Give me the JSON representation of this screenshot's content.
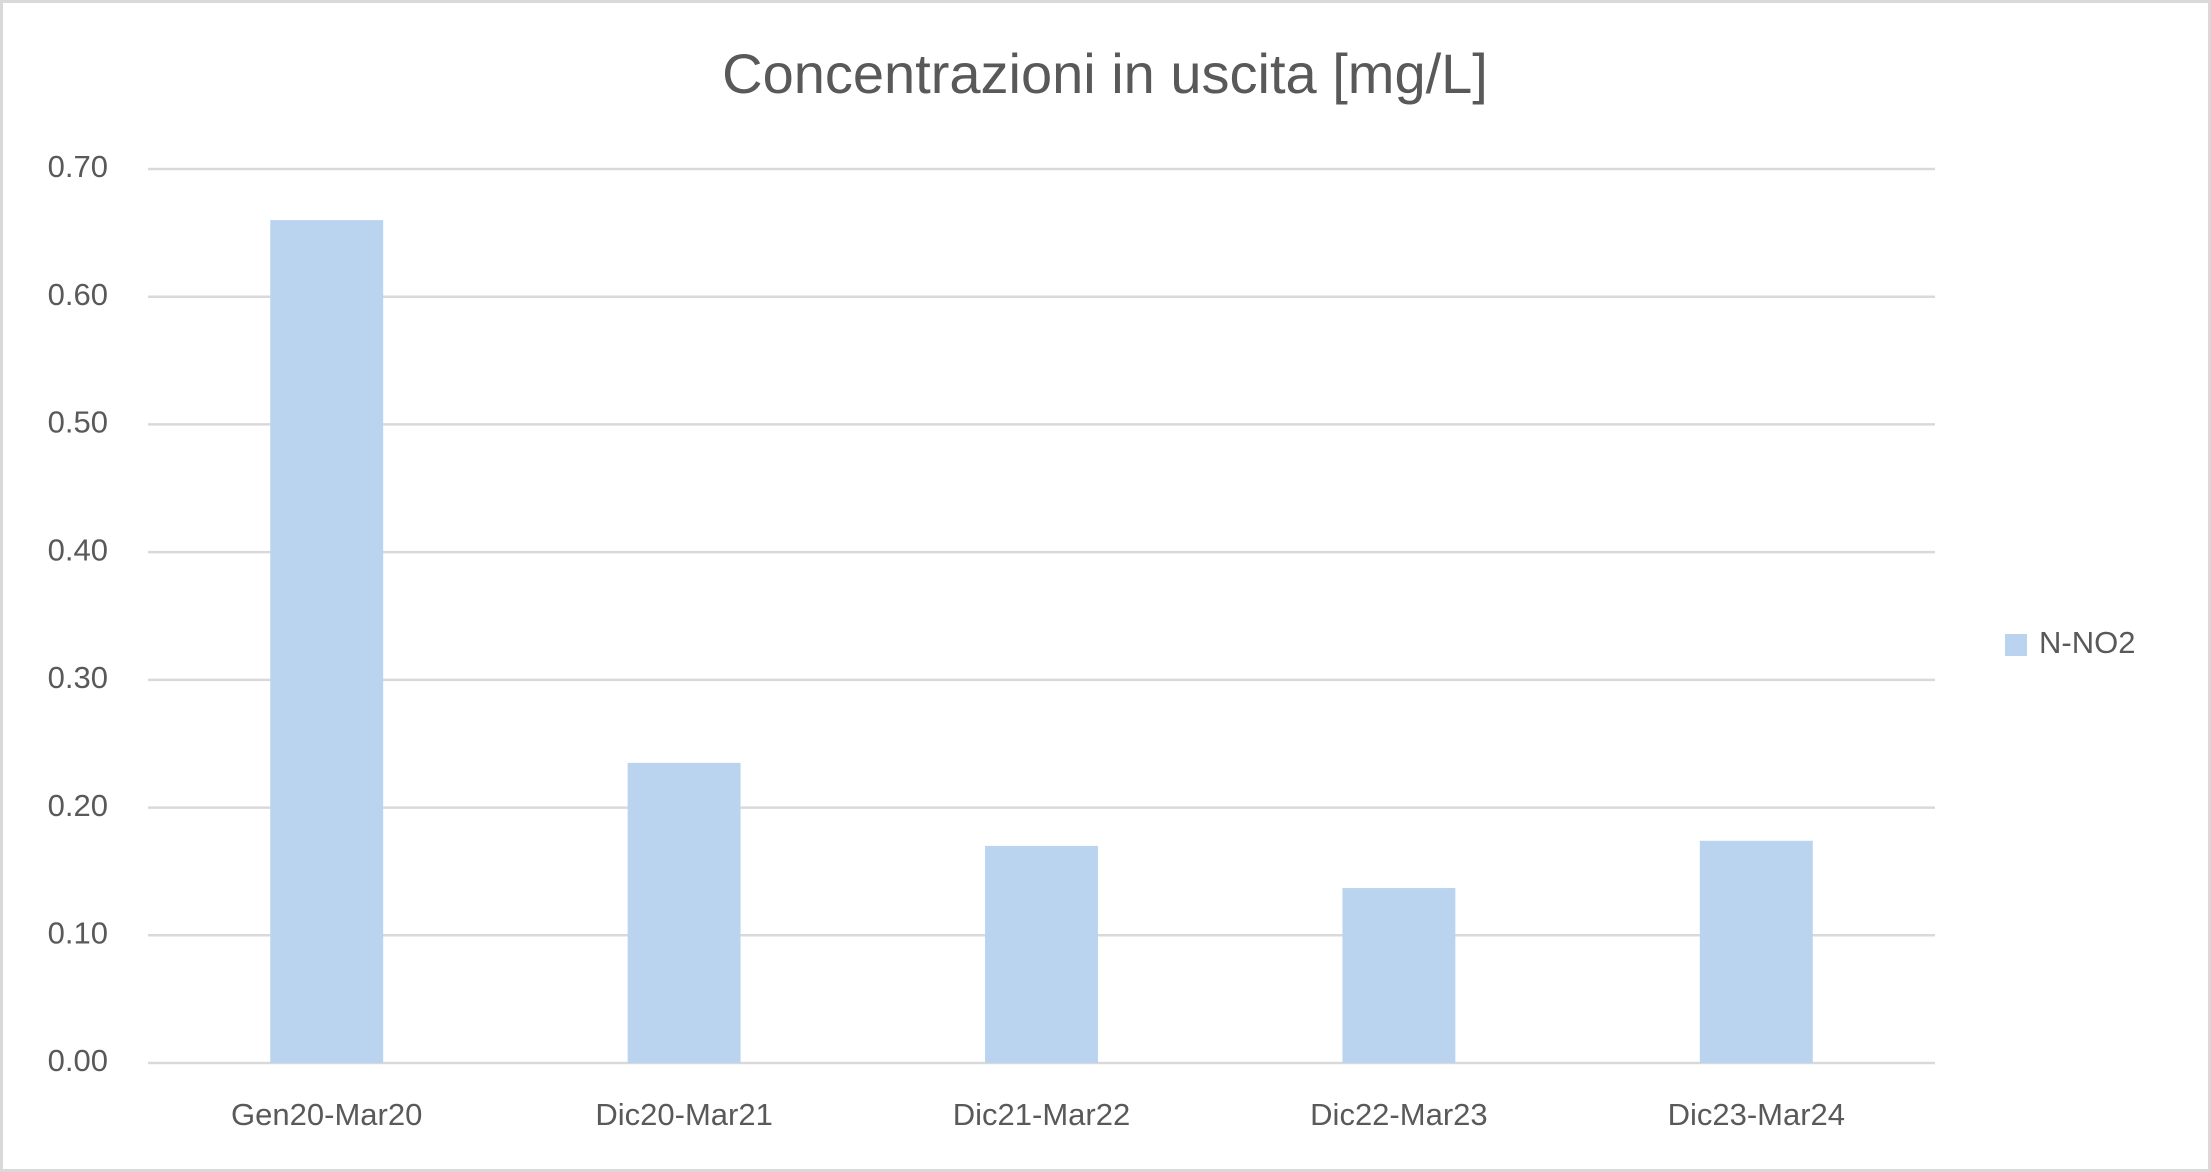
{
  "chart_data": {
    "type": "bar",
    "title": "Concentrazioni in uscita [mg/L]",
    "categories": [
      "Gen20-Mar20",
      "Dic20-Mar21",
      "Dic21-Mar22",
      "Dic22-Mar23",
      "Dic23-Mar24"
    ],
    "series": [
      {
        "name": "N-NO2",
        "color": "#bad4f0",
        "values": [
          0.66,
          0.235,
          0.17,
          0.137,
          0.174
        ]
      }
    ],
    "ylim": [
      0,
      0.7
    ],
    "yticks": [
      {
        "value": 0,
        "label": "0.00"
      },
      {
        "value": 0.1,
        "label": "0.10"
      },
      {
        "value": 0.2,
        "label": "0.20"
      },
      {
        "value": 0.3,
        "label": "0.30"
      },
      {
        "value": 0.4,
        "label": "0.40"
      },
      {
        "value": 0.5,
        "label": "0.50"
      },
      {
        "value": 0.6,
        "label": "0.60"
      },
      {
        "value": 0.7,
        "label": "0.70"
      }
    ],
    "grid": true,
    "legend": "right"
  }
}
